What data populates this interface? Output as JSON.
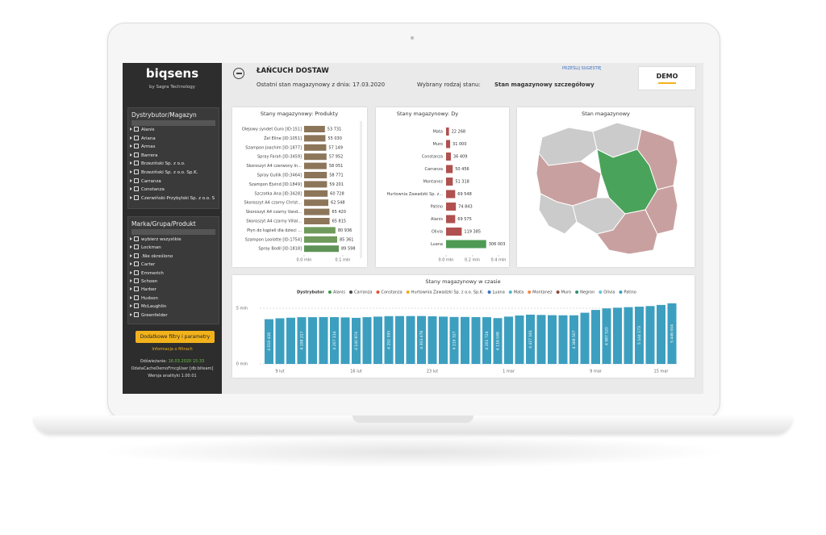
{
  "sidebar": {
    "logo": "biqsens",
    "tagline": "by Sagra Technology",
    "filters": [
      {
        "title": "Dystrybutor/Magazyn",
        "items": [
          "Alanis",
          "Ariana",
          "Armas",
          "Barrera",
          "Brzeziński Sp. z o.o.",
          "Brzeziński Sp. z o.o. Sp.K.",
          "Carranza",
          "Constanza",
          "Czerwiński-Przybylski Sp. z o.o. S"
        ]
      },
      {
        "title": "Marka/Grupa/Produkt",
        "items": [
          "wybierz wszystkie",
          "Lockman",
          ".Nie określono",
          "Carter",
          "Emmerich",
          "Schoen",
          "Harber",
          "Hudson",
          "McLaughlin",
          "Greenfelder"
        ]
      }
    ],
    "button": "Dodatkowe filtry i parametry",
    "info": "Informacja o filtrach",
    "refresh_label": "Odświeżanie:",
    "refresh_time": "16.03.2020 15:33",
    "user": "OdataCacheDemoFmcgUser [db:biteam]",
    "version": "Wersja analityki 1.00.01"
  },
  "header": {
    "title": "ŁAŃCUCH DOSTAW",
    "state_date": "Ostatni stan magazynowy z dnia: 17.03.2020",
    "state_type_label": "Wybrany rodzaj stanu:",
    "state_type": "Stan magazynowy szczegółowy",
    "suggestion": "PRZEŚLIJ SUGESTIĘ",
    "badge": "DEMO"
  },
  "charts": [
    {
      "type": "hbar",
      "title": "Stany magazynowy: Produkty",
      "categories": [
        "Olejowy syndet Guro [ID:151]",
        "Żel Eline [ID:1051]",
        "Szampon Joachim [ID:1877]",
        "Spray Farah [ID:3459]",
        "Skoroszyt A4 czerwony In...",
        "Spray Gullik [ID:3464]",
        "Szampon Ejvind [ID:1849]",
        "Szczotka Ana [ID:3428]",
        "Skoroszyt A4 czarny Christ...",
        "Skoroszyt A4 czarny Vand...",
        "Skoroszyt A4 czarny Villal...",
        "Płyn do kąpieli dla dzieci ...",
        "Szampon Loolotte [ID:1754]",
        "Spray Bodil [ID:1818]"
      ],
      "values": [
        0.053731,
        0.05503,
        0.057149,
        0.057952,
        0.058051,
        0.058771,
        0.059201,
        0.060728,
        0.062548,
        0.06542,
        0.065815,
        0.080936,
        0.085361,
        0.089598
      ],
      "value_labels": [
        "53 731",
        "55 030",
        "57 149",
        "57 952",
        "58 051",
        "58 771",
        "59 201",
        "60 728",
        "62 548",
        "65 420",
        "65 815",
        "80 936",
        "85 361",
        "89 598"
      ],
      "colors": [
        "#8c7559",
        "#8c7559",
        "#8c7559",
        "#8c7559",
        "#8c7559",
        "#8c7559",
        "#8c7559",
        "#8c7559",
        "#8c7559",
        "#8c7559",
        "#8c7559",
        "#6f9a5c",
        "#6f9a5c",
        "#5f9457"
      ],
      "xlim": [
        0,
        0.1
      ],
      "xticks": [
        {
          "value": 0,
          "label": "0.0 mln"
        },
        {
          "value": 0.1,
          "label": "0.1 mln"
        }
      ]
    },
    {
      "type": "hbar",
      "title": "Stany magazynowy: Dy",
      "categories": [
        "Mata",
        "Muro",
        "Constanza",
        "Carranza",
        "Montanez",
        "Hurtownia Zawadzki Sp. z...",
        "Patino",
        "Alanis",
        "Olivia",
        "Luana"
      ],
      "values": [
        0.022268,
        0.031,
        0.036409,
        0.050456,
        0.051318,
        0.069548,
        0.074843,
        0.069575,
        0.119385,
        0.306003
      ],
      "value_labels": [
        "22 268",
        "31 000",
        "36 409",
        "50 456",
        "51 318",
        "69 548",
        "74 843",
        "69 575",
        "119 385",
        "306 003"
      ],
      "colors": [
        "#b0514f",
        "#b0514f",
        "#b0514f",
        "#b0514f",
        "#b0514f",
        "#b0514f",
        "#b0514f",
        "#b0514f",
        "#b0514f",
        "#4e9a55"
      ],
      "xlim": [
        0,
        0.4
      ],
      "xticks": [
        {
          "value": 0,
          "label": "0.0 mln"
        },
        {
          "value": 0.2,
          "label": "0.2 mln"
        },
        {
          "value": 0.4,
          "label": "0.4 mln"
        }
      ]
    },
    {
      "type": "map",
      "title": "Stan magazynowy"
    },
    {
      "type": "bar",
      "title": "Stany magazynowy w czasie",
      "legend_title": "Dystrybutor",
      "legend": [
        {
          "name": "Alanis",
          "color": "#3c9a4c"
        },
        {
          "name": "Carranza",
          "color": "#4a4a4a"
        },
        {
          "name": "Constanza",
          "color": "#e0503a"
        },
        {
          "name": "Hurtownia Zawadzki  Sp. z o.o. Sp.K.",
          "color": "#e8b020"
        },
        {
          "name": "Luana",
          "color": "#3a6fc4"
        },
        {
          "name": "Mata",
          "color": "#56b6c8"
        },
        {
          "name": "Montanez",
          "color": "#f08a4b"
        },
        {
          "name": "Muro",
          "color": "#8b4a3a"
        },
        {
          "name": "Negron",
          "color": "#2f8f6a"
        },
        {
          "name": "Olivia",
          "color": "#6ac0e0"
        },
        {
          "name": "Patino",
          "color": "#3d9fbf"
        }
      ],
      "color": "#3d9fbf",
      "categories": [
        null,
        "9 lut",
        null,
        null,
        null,
        null,
        null,
        null,
        "16 lut",
        null,
        null,
        null,
        null,
        null,
        null,
        "23 lut",
        null,
        null,
        null,
        null,
        null,
        null,
        "1 mar",
        null,
        null,
        null,
        null,
        null,
        null,
        null,
        "9 mar",
        null,
        null,
        null,
        null,
        null,
        "15 mar",
        null
      ],
      "values": [
        4.019416,
        4.1,
        4.15,
        4.198217,
        4.2,
        4.21,
        4.207114,
        4.18,
        4.140874,
        4.2,
        4.25,
        4.292595,
        4.3,
        4.3,
        4.303478,
        4.28,
        4.25,
        4.219327,
        4.22,
        4.21,
        4.201724,
        4.116048,
        4.25,
        4.35,
        4.427161,
        4.4,
        4.38,
        4.37,
        4.368507,
        4.6,
        4.85,
        4.98752,
        5.05,
        5.1,
        5.144173,
        5.2,
        5.3,
        5.446004
      ],
      "value_labels": [
        "4 019 416",
        null,
        null,
        "4 198 217",
        null,
        null,
        "4 207 114",
        null,
        "4 140 874",
        null,
        null,
        "4 292 595",
        null,
        null,
        "4 303 478",
        null,
        null,
        "4 219 327",
        null,
        null,
        "4 201 724",
        "4 116 048",
        null,
        null,
        "4 427 161",
        null,
        null,
        null,
        "4 368 507",
        null,
        null,
        "4 987 520",
        null,
        null,
        "5 144 173",
        null,
        null,
        "5 446 004"
      ],
      "ylim": [
        0,
        5.8
      ],
      "yticks": [
        {
          "value": 0,
          "label": "0 mln"
        },
        {
          "value": 5,
          "label": "5 mln"
        }
      ]
    }
  ]
}
